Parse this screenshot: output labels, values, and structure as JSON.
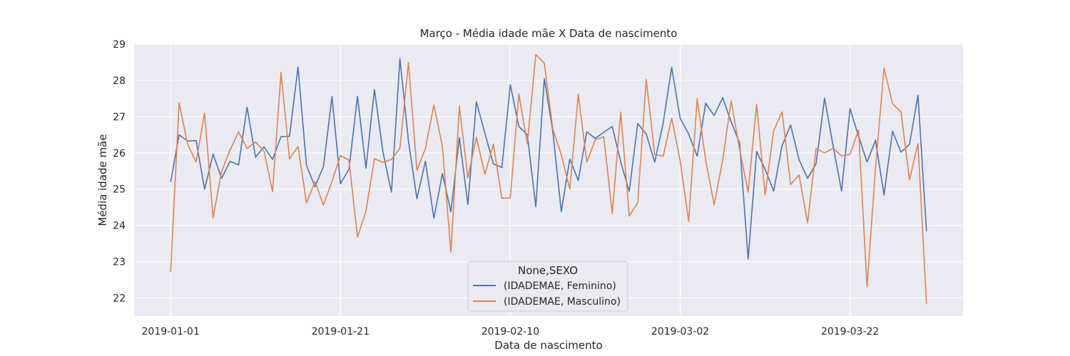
{
  "chart_data": {
    "type": "line",
    "title": "Março - Média idade mãe X Data de nascimento",
    "xlabel": "Data de nascimento",
    "ylabel": "Média idade mãe",
    "x_start": "2019-01-01",
    "x_days": 90,
    "xlim_days": [
      -4.3,
      93.3
    ],
    "ylim": [
      21.5,
      29.0
    ],
    "y_ticks": [
      22,
      23,
      24,
      25,
      26,
      27,
      28,
      29
    ],
    "x_ticks": [
      {
        "day": 0,
        "label": "2019-01-01"
      },
      {
        "day": 20,
        "label": "2019-01-21"
      },
      {
        "day": 40,
        "label": "2019-02-10"
      },
      {
        "day": 60,
        "label": "2019-03-02"
      },
      {
        "day": 80,
        "label": "2019-03-22"
      }
    ],
    "grid": true,
    "legend": {
      "title": "None,SEXO",
      "position": "bottom-center"
    },
    "series": [
      {
        "name": "(IDADEMAE, Feminino)",
        "color": "#4c72b0",
        "values": [
          25.2,
          26.5,
          26.33,
          26.34,
          25.0,
          25.97,
          25.3,
          25.77,
          25.67,
          27.26,
          25.88,
          26.17,
          25.82,
          26.45,
          26.46,
          28.37,
          25.65,
          25.07,
          25.63,
          27.55,
          25.15,
          25.55,
          27.56,
          25.58,
          27.75,
          26.02,
          24.92,
          28.6,
          26.33,
          24.74,
          25.77,
          24.2,
          25.43,
          24.38,
          26.42,
          24.58,
          27.41,
          26.55,
          25.7,
          25.6,
          27.88,
          26.73,
          26.5,
          24.52,
          28.05,
          26.6,
          24.38,
          25.83,
          25.24,
          26.58,
          26.4,
          26.57,
          26.73,
          25.75,
          24.94,
          26.81,
          26.52,
          25.75,
          26.83,
          28.36,
          26.95,
          26.52,
          25.91,
          27.37,
          27.03,
          27.52,
          26.86,
          26.27,
          23.07,
          26.04,
          25.55,
          24.95,
          26.2,
          26.77,
          25.81,
          25.3,
          25.7,
          27.51,
          26.2,
          24.95,
          27.22,
          26.46,
          25.75,
          26.35,
          24.84,
          26.6,
          26.02,
          26.24,
          27.59,
          23.84
        ]
      },
      {
        "name": "(IDADEMAE, Masculino)",
        "color": "#dd8452",
        "values": [
          22.72,
          27.38,
          26.24,
          25.75,
          27.1,
          24.21,
          25.49,
          26.08,
          26.58,
          26.12,
          26.3,
          26.05,
          24.93,
          28.22,
          25.83,
          26.18,
          24.62,
          25.21,
          24.56,
          25.22,
          25.93,
          25.8,
          23.68,
          24.4,
          25.84,
          25.74,
          25.82,
          26.13,
          28.49,
          25.52,
          26.12,
          27.32,
          26.18,
          23.26,
          27.29,
          25.31,
          26.43,
          25.41,
          26.24,
          24.75,
          24.76,
          27.63,
          26.25,
          28.71,
          28.47,
          26.66,
          25.95,
          25.0,
          27.62,
          25.75,
          26.36,
          26.45,
          24.33,
          27.13,
          24.26,
          24.63,
          28.03,
          25.95,
          25.91,
          26.96,
          25.78,
          24.11,
          27.5,
          25.8,
          24.57,
          25.8,
          27.44,
          26.1,
          24.92,
          27.34,
          24.84,
          26.61,
          27.13,
          25.13,
          25.39,
          24.07,
          26.12,
          26.0,
          26.13,
          25.92,
          25.96,
          26.63,
          22.31,
          25.58,
          28.34,
          27.36,
          27.13,
          25.26,
          26.26,
          21.84
        ]
      }
    ]
  }
}
